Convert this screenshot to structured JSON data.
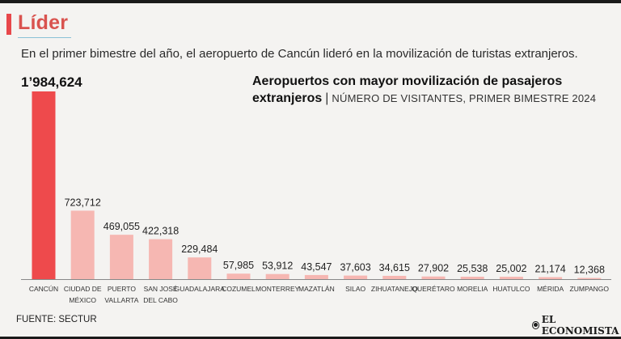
{
  "header": {
    "section_title": "Líder",
    "subtitle": "En el primer bimestre del año, el aeropuerto de Cancún lideró en la movilización de turistas extranjeros."
  },
  "chart_data": {
    "type": "bar",
    "title": "Aeropuertos con mayor movilización de pasajeros extranjeros",
    "subtitle": "NÚMERO DE VISITANTES, PRIMER BIMESTRE 2024",
    "categories": [
      [
        "CANCÚN"
      ],
      [
        "CIUDAD DE",
        "MÉXICO"
      ],
      [
        "PUERTO",
        "VALLARTA"
      ],
      [
        "SAN JOSÉ",
        "DEL CABO"
      ],
      [
        "GUADALAJARA"
      ],
      [
        "COZUMEL"
      ],
      [
        "MONTERREY"
      ],
      [
        "MAZATLÁN"
      ],
      [
        "SILAO"
      ],
      [
        "ZIHUATANEJO"
      ],
      [
        "QUERÉTARO"
      ],
      [
        "MORELIA"
      ],
      [
        "HUATULCO"
      ],
      [
        "MÉRIDA"
      ],
      [
        "ZUMPANGO"
      ]
    ],
    "values": [
      1984624,
      723712,
      469055,
      422318,
      229484,
      57985,
      53912,
      43547,
      37603,
      34615,
      27902,
      25538,
      25002,
      21174,
      12368
    ],
    "value_labels": [
      "1’984,624",
      "723,712",
      "469,055",
      "422,318",
      "229,484",
      "57,985",
      "53,912",
      "43,547",
      "37,603",
      "34,615",
      "27,902",
      "25,538",
      "25,002",
      "21,174",
      "12,368"
    ],
    "xlabel": "",
    "ylabel": "",
    "ylim": [
      0,
      1984624
    ],
    "colors": {
      "highlight": "#ee4a4c",
      "default": "#f6b7b2",
      "baseline": "#888888"
    }
  },
  "footer": {
    "source": "FUENTE: SECTUR",
    "brand": "EL ECONOMISTA",
    "brand_icon": "globe-icon"
  }
}
